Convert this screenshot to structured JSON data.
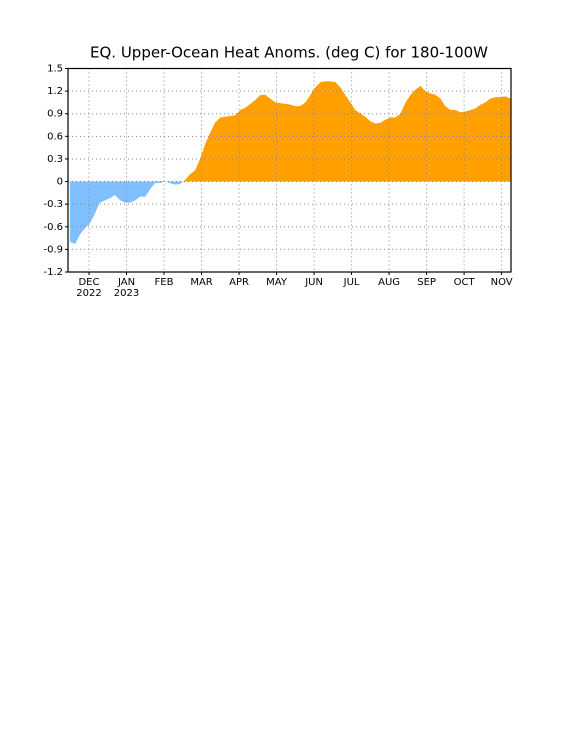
{
  "chart_data": {
    "type": "area",
    "title": "EQ. Upper-Ocean Heat Anoms. (deg C) for 180-100W",
    "positive_color": "#ffa000",
    "negative_color": "#80bfff",
    "grid": true,
    "xlim": [
      -0.56,
      11.25
    ],
    "ylim": [
      -1.2,
      1.5
    ],
    "yticks": [
      -1.2,
      -0.9,
      -0.6,
      -0.3,
      0,
      0.3,
      0.6,
      0.9,
      1.2,
      1.5
    ],
    "xticks": [
      {
        "value": 0,
        "label": "DEC"
      },
      {
        "value": 1,
        "label": "JAN"
      },
      {
        "value": 2,
        "label": "FEB"
      },
      {
        "value": 3,
        "label": "MAR"
      },
      {
        "value": 4,
        "label": "APR"
      },
      {
        "value": 5,
        "label": "MAY"
      },
      {
        "value": 6,
        "label": "JUN"
      },
      {
        "value": 7,
        "label": "JUL"
      },
      {
        "value": 8,
        "label": "AUG"
      },
      {
        "value": 9,
        "label": "SEP"
      },
      {
        "value": 10,
        "label": "OCT"
      },
      {
        "value": 11,
        "label": "NOV"
      }
    ],
    "xtick_years": [
      {
        "value": 0,
        "label": "2022"
      },
      {
        "value": 1,
        "label": "2023"
      }
    ],
    "x": [
      -0.51,
      -0.37,
      -0.24,
      -0.11,
      0.03,
      0.16,
      0.29,
      0.43,
      0.56,
      0.69,
      0.83,
      0.96,
      1.1,
      1.23,
      1.36,
      1.5,
      1.63,
      1.76,
      1.9,
      2.03,
      2.16,
      2.3,
      2.43,
      2.56,
      2.7,
      2.83,
      2.96,
      3.1,
      3.23,
      3.36,
      3.5,
      3.63,
      3.77,
      3.9,
      4.03,
      4.17,
      4.3,
      4.43,
      4.57,
      4.7,
      4.83,
      4.97,
      5.1,
      5.23,
      5.37,
      5.5,
      5.63,
      5.77,
      5.9,
      6.03,
      6.17,
      6.3,
      6.43,
      6.57,
      6.7,
      6.83,
      6.97,
      7.1,
      7.24,
      7.37,
      7.5,
      7.64,
      7.77,
      7.9,
      8.04,
      8.17,
      8.3,
      8.44,
      8.57,
      8.7,
      8.84,
      8.97,
      9.1,
      9.24,
      9.37,
      9.5,
      9.64,
      9.77,
      9.9,
      10.04,
      10.17,
      10.3,
      10.44,
      10.57,
      10.7,
      10.84,
      10.97,
      11.1,
      11.24
    ],
    "values": [
      -0.8,
      -0.83,
      -0.7,
      -0.62,
      -0.55,
      -0.42,
      -0.28,
      -0.25,
      -0.22,
      -0.18,
      -0.25,
      -0.28,
      -0.28,
      -0.25,
      -0.2,
      -0.2,
      -0.1,
      -0.02,
      -0.02,
      0,
      -0.02,
      -0.04,
      -0.03,
      0.02,
      0.1,
      0.15,
      0.3,
      0.5,
      0.65,
      0.78,
      0.85,
      0.86,
      0.87,
      0.88,
      0.95,
      0.98,
      1.03,
      1.08,
      1.15,
      1.15,
      1.1,
      1.05,
      1.04,
      1.03,
      1.02,
      1.0,
      1.0,
      1.05,
      1.15,
      1.25,
      1.32,
      1.33,
      1.33,
      1.32,
      1.25,
      1.15,
      1.05,
      0.95,
      0.9,
      0.86,
      0.8,
      0.77,
      0.78,
      0.82,
      0.85,
      0.85,
      0.9,
      1.05,
      1.15,
      1.22,
      1.27,
      1.2,
      1.17,
      1.15,
      1.1,
      1.0,
      0.95,
      0.95,
      0.92,
      0.93,
      0.95,
      0.97,
      1.02,
      1.05,
      1.1,
      1.12,
      1.12,
      1.13,
      1.1
    ]
  }
}
